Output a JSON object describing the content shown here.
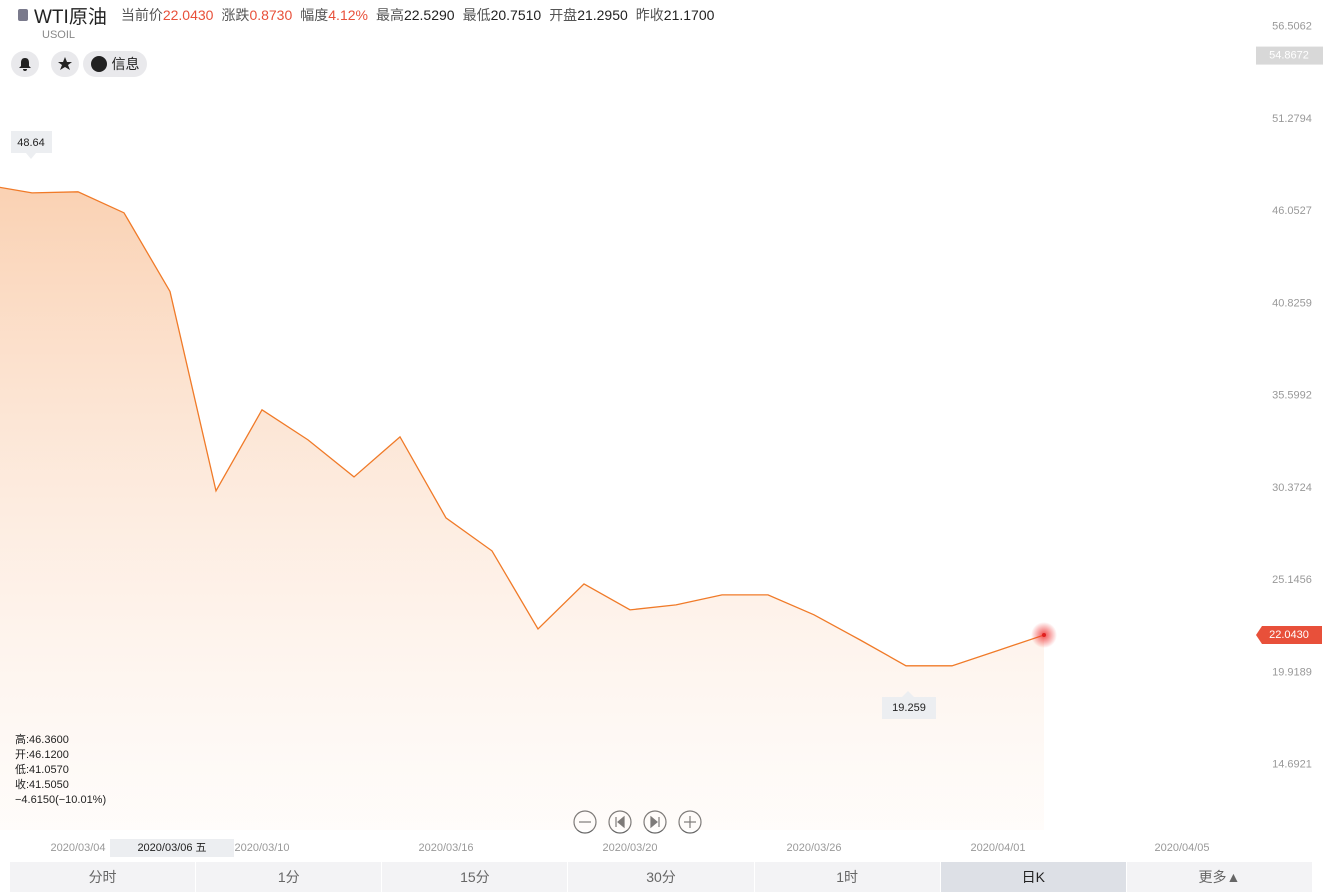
{
  "header": {
    "title": "WTI原油",
    "symbol": "USOIL",
    "stats": [
      {
        "label": "当前价",
        "value": "22.0430",
        "color": "#e8503a"
      },
      {
        "label": "涨跌",
        "value": "0.8730",
        "color": "#e8503a"
      },
      {
        "label": "幅度",
        "value": "4.12%",
        "color": "#e8503a"
      },
      {
        "label": "最高",
        "value": "22.5290",
        "color": "#222222"
      },
      {
        "label": "最低",
        "value": "20.7510",
        "color": "#222222"
      },
      {
        "label": "开盘",
        "value": "21.2950",
        "color": "#222222"
      },
      {
        "label": "昨收",
        "value": "21.1700",
        "color": "#222222"
      }
    ],
    "info_button": "信息"
  },
  "chart_data": {
    "type": "line",
    "categories": [
      null,
      null,
      "2020/03/04",
      null,
      null,
      null,
      "2020/03/10",
      null,
      null,
      null,
      "2020/03/16",
      null,
      null,
      null,
      "2020/03/20",
      null,
      null,
      null,
      "2020/03/26",
      null,
      null,
      null,
      "2020/04/01",
      null,
      null,
      null,
      "2020/04/05"
    ],
    "series": [
      {
        "color": "#f07a28",
        "values": [
          47.54,
          47.09,
          47.15,
          45.96,
          41.505,
          30.21,
          34.8,
          33.1,
          31.0,
          33.27,
          28.68,
          26.81,
          22.39,
          24.94,
          23.47,
          23.75,
          24.32,
          24.32,
          23.19,
          21.77,
          20.3,
          20.3,
          21.17,
          22.043,
          null,
          null,
          null
        ]
      }
    ],
    "ylim": [
      11,
      57.45
    ],
    "yticks": [
      56.5062,
      51.2794,
      46.0527,
      40.8259,
      35.5992,
      30.3724,
      25.1456,
      19.9189,
      14.6921
    ],
    "crosshair_value": 54.8672,
    "crosshair_date": "2020/03/06 五",
    "last_price": {
      "value": 22.043,
      "label": "22.0430"
    },
    "max_label": "48.64",
    "min_label": "19.259",
    "ohlc": [
      "高:46.3600",
      "开:46.1200",
      "低:41.0570",
      "收:41.5050",
      "−4.6150(−10.01%)"
    ]
  },
  "tabs": {
    "items": [
      "分时",
      "1分",
      "15分",
      "30分",
      "1时",
      "日K",
      "更多▲"
    ],
    "active": 5
  }
}
